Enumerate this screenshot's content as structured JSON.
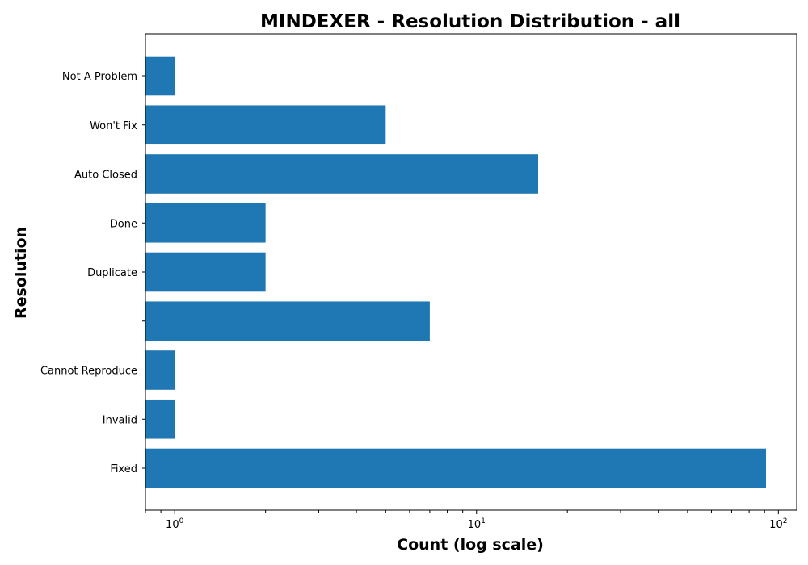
{
  "chart_data": {
    "type": "bar",
    "orientation": "horizontal",
    "title": "MINDEXER - Resolution Distribution - all",
    "xlabel": "Count (log scale)",
    "ylabel": "Resolution",
    "x_scale": "log",
    "xlim": [
      0.8,
      115
    ],
    "x_ticks": [
      {
        "value": 1,
        "base": "10",
        "exp": "0"
      },
      {
        "value": 10,
        "base": "10",
        "exp": "1"
      },
      {
        "value": 100,
        "base": "10",
        "exp": "2"
      }
    ],
    "categories": [
      "Fixed",
      "Invalid",
      "Cannot Reproduce",
      "",
      "Duplicate",
      "Done",
      "Auto Closed",
      "Won't Fix",
      "Not A Problem"
    ],
    "values": [
      91,
      1,
      1,
      7,
      2,
      2,
      16,
      5,
      1
    ],
    "bar_color": "#1f77b4",
    "grid": false,
    "legend": "none"
  }
}
